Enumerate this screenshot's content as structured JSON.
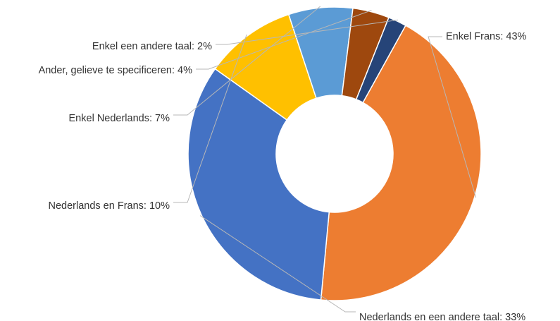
{
  "chart_data": {
    "type": "pie",
    "donut": true,
    "start_angle_deg": 29,
    "direction": "clockwise",
    "slices": [
      {
        "label": "Enkel Frans",
        "value": 43,
        "color": "#ED7D31"
      },
      {
        "label": "Nederlands en een andere taal",
        "value": 33,
        "color": "#4472C4"
      },
      {
        "label": "Nederlands en Frans",
        "value": 10,
        "color": "#FFC000"
      },
      {
        "label": "Enkel Nederlands",
        "value": 7,
        "color": "#5B9BD5"
      },
      {
        "label": "Ander, gelieve te specificeren",
        "value": 4,
        "color": "#9E480E"
      },
      {
        "label": "Enkel een andere taal",
        "value": 2,
        "color": "#264478"
      }
    ],
    "label_format": "{label}: {value}%"
  }
}
